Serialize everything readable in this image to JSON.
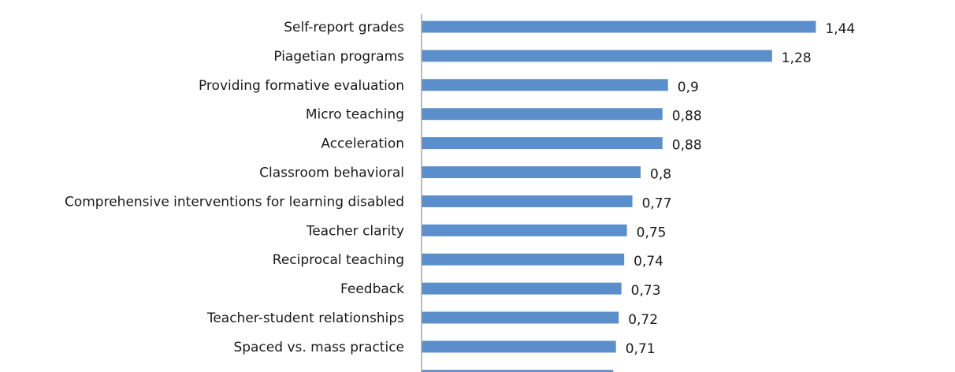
{
  "chart_data": {
    "type": "bar",
    "orientation": "horizontal",
    "categories": [
      "Self-report grades",
      "Piagetian programs",
      "Providing formative evaluation",
      "Micro teaching",
      "Acceleration",
      "Classroom behavioral",
      "Comprehensive interventions for learning disabled",
      "Teacher clarity",
      "Reciprocal teaching",
      "Feedback",
      "Teacher-student relationships",
      "Spaced vs. mass practice",
      ""
    ],
    "values": [
      1.44,
      1.28,
      0.9,
      0.88,
      0.88,
      0.8,
      0.77,
      0.75,
      0.74,
      0.73,
      0.72,
      0.71,
      0.7
    ],
    "value_labels": [
      "1,44",
      "1,28",
      "0,9",
      "0,88",
      "0,88",
      "0,8",
      "0,77",
      "0,75",
      "0,74",
      "0,73",
      "0,72",
      "0,71",
      ""
    ],
    "xlim": [
      0,
      1.5
    ],
    "title": "",
    "xlabel": "",
    "ylabel": "",
    "grid": false,
    "legend": "none",
    "colors": {
      "bar": "#5b8fcb",
      "axis": "#a6a6a6",
      "text": "#1a1a1a"
    }
  }
}
